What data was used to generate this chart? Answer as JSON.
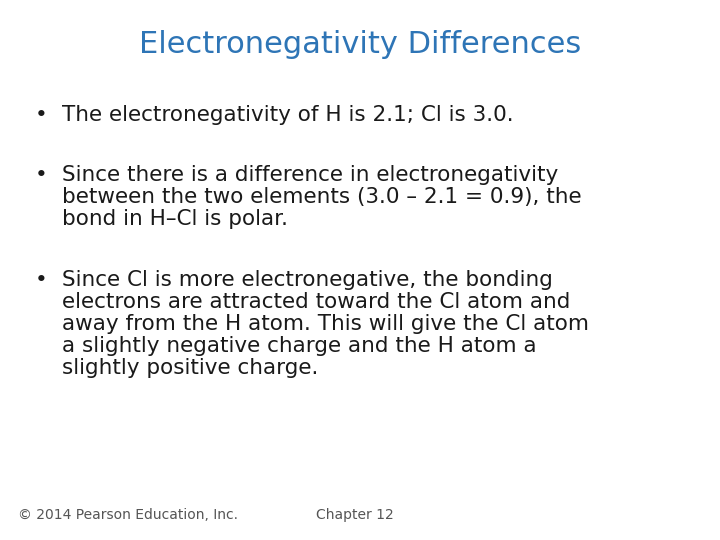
{
  "title": "Electronegativity Differences",
  "title_color": "#2E75B6",
  "title_fontsize": 22,
  "background_color": "#FFFFFF",
  "bullet1": "The electronegativity of H is 2.1; Cl is 3.0.",
  "bullet2_line1": "Since there is a difference in electronegativity",
  "bullet2_line2": "between the two elements (3.0 – 2.1 = 0.9), the",
  "bullet2_line3": "bond in H–Cl is polar.",
  "bullet3_line1": "Since Cl is more electronegative, the bonding",
  "bullet3_line2": "electrons are attracted toward the Cl atom and",
  "bullet3_line3": "away from the H atom. This will give the Cl atom",
  "bullet3_line4": "a slightly negative charge and the H atom a",
  "bullet3_line5": "slightly positive charge.",
  "footer_left": "© 2014 Pearson Education, Inc.",
  "footer_right": "Chapter 12",
  "text_color": "#1a1a1a",
  "footer_color": "#555555",
  "body_fontsize": 15.5,
  "footer_fontsize": 10,
  "bullet_fontsize": 15.5
}
